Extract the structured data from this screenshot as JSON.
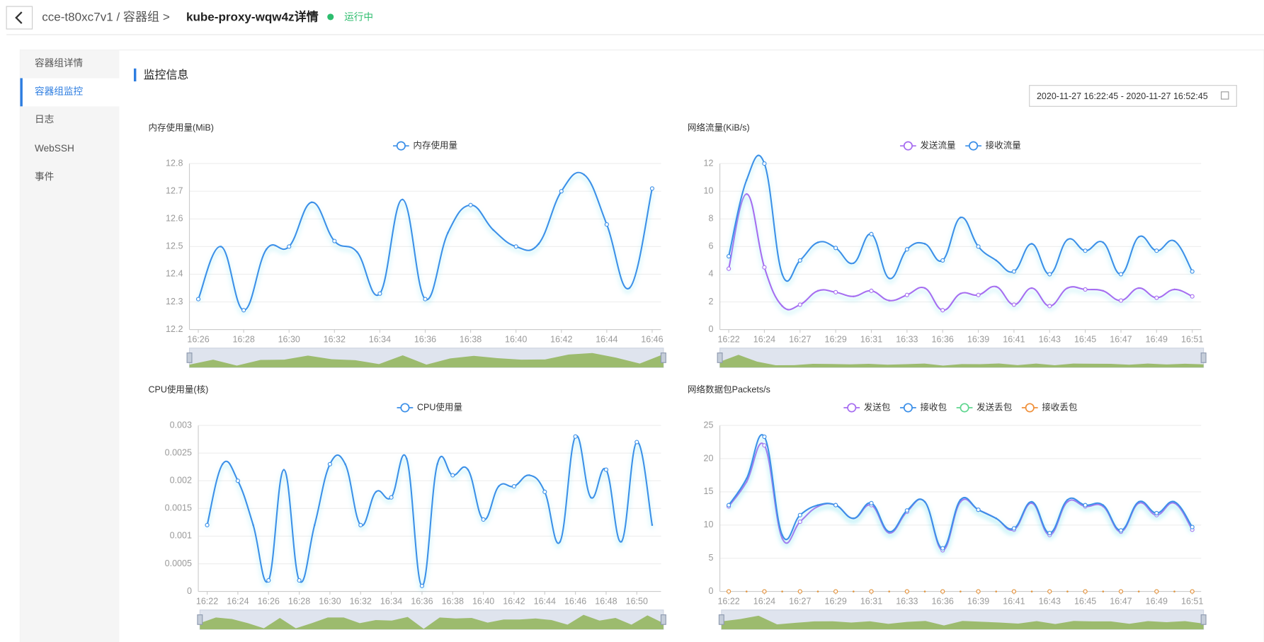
{
  "header": {
    "breadcrumb": "cce-t80xc7v1 / 容器组 >",
    "title": "kube-proxy-wqw4z详情",
    "status": "运行中"
  },
  "sidebar": [
    "容器组详情",
    "容器组监控",
    "日志",
    "WebSSH",
    "事件"
  ],
  "section_title": "监控信息",
  "date_range": "2020-11-27 16:22:45 - 2020-11-27 16:52:45",
  "chart_data": [
    {
      "type": "line",
      "smooth": true,
      "grid": true,
      "title": "内存使用量(MiB)",
      "categories": [
        "16:26",
        null,
        "16:28",
        null,
        "16:30",
        null,
        "16:32",
        null,
        "16:34",
        null,
        "16:36",
        null,
        "16:38",
        null,
        "16:40",
        null,
        "16:42",
        null,
        "16:44",
        null,
        "16:46"
      ],
      "series": [
        {
          "name": "内存使用量",
          "color": "#3b8fe8",
          "values": [
            12.31,
            12.5,
            12.27,
            12.49,
            12.5,
            12.66,
            12.52,
            12.48,
            12.33,
            12.67,
            12.31,
            12.55,
            12.65,
            12.56,
            12.5,
            12.51,
            12.7,
            12.76,
            12.58,
            12.35,
            12.71
          ]
        }
      ],
      "ylim": [
        12.2,
        12.8
      ],
      "yticks": [
        12.2,
        12.3,
        12.4,
        12.5,
        12.6,
        12.7,
        12.8
      ]
    },
    {
      "type": "line",
      "smooth": true,
      "grid": true,
      "title": "网络流量(KiB/s)",
      "categories": [
        "16:22",
        null,
        "16:24",
        null,
        "16:27",
        null,
        "16:29",
        null,
        "16:31",
        null,
        "16:33",
        null,
        "16:36",
        null,
        "16:39",
        null,
        "16:41",
        null,
        "16:43",
        null,
        "16:45",
        null,
        "16:47",
        null,
        "16:49",
        null,
        "16:51"
      ],
      "series": [
        {
          "name": "发送流量",
          "color": "#a66cf0",
          "values": [
            4.4,
            9.8,
            4.5,
            1.7,
            1.8,
            2.8,
            2.7,
            2.4,
            2.8,
            2.1,
            2.5,
            3,
            1.4,
            2.6,
            2.5,
            3.1,
            1.8,
            3,
            1.7,
            3,
            2.9,
            2.8,
            2.1,
            3,
            2.3,
            2.9,
            2.4
          ]
        },
        {
          "name": "接收流量",
          "color": "#3b8fe8",
          "values": [
            5.3,
            10.8,
            12,
            4,
            5,
            6.3,
            5.9,
            4.8,
            6.9,
            3.7,
            5.8,
            6.2,
            5,
            8.1,
            6,
            5,
            4.2,
            6.2,
            4,
            6.5,
            5.7,
            6.3,
            4,
            6.7,
            5.7,
            6.4,
            4.2
          ]
        }
      ],
      "ylim": [
        0,
        12
      ],
      "yticks": [
        0,
        2,
        4,
        6,
        8,
        10,
        12
      ]
    },
    {
      "type": "line",
      "smooth": true,
      "grid": true,
      "title": "CPU使用量(核)",
      "categories": [
        "16:22",
        null,
        "16:24",
        null,
        "16:26",
        null,
        "16:28",
        null,
        "16:30",
        null,
        "16:32",
        null,
        "16:34",
        null,
        "16:36",
        null,
        "16:38",
        null,
        "16:40",
        null,
        "16:42",
        null,
        "16:44",
        null,
        "16:46",
        null,
        "16:48",
        null,
        "16:50",
        null
      ],
      "series": [
        {
          "name": "CPU使用量",
          "color": "#3b8fe8",
          "values": [
            0.0012,
            0.0023,
            0.002,
            0.0012,
            0.0002,
            0.0022,
            0.0002,
            0.0012,
            0.0023,
            0.0023,
            0.0012,
            0.0018,
            0.0017,
            0.0024,
            0.0001,
            0.0023,
            0.0021,
            0.0022,
            0.0013,
            0.0019,
            0.0019,
            0.0021,
            0.0018,
            0.0009,
            0.0028,
            0.0017,
            0.0022,
            0.0009,
            0.0027,
            0.0012
          ]
        }
      ],
      "ylim": [
        0,
        0.003
      ],
      "yticks": [
        0,
        0.0005,
        0.001,
        0.0015,
        0.002,
        0.0025,
        0.003
      ]
    },
    {
      "type": "line",
      "smooth": true,
      "grid": true,
      "title": "网络数据包Packets/s",
      "categories": [
        "16:22",
        null,
        "16:24",
        null,
        "16:27",
        null,
        "16:29",
        null,
        "16:31",
        null,
        "16:33",
        null,
        "16:36",
        null,
        "16:39",
        null,
        "16:41",
        null,
        "16:43",
        null,
        "16:45",
        null,
        "16:47",
        null,
        "16:49",
        null,
        "16:51"
      ],
      "series": [
        {
          "name": "发送包",
          "color": "#a66cf0",
          "values": [
            12.8,
            16.5,
            22,
            8,
            10.5,
            12.8,
            13,
            11,
            13,
            8.8,
            12,
            13.5,
            6.2,
            13.5,
            12.3,
            11,
            9.3,
            13.3,
            8.5,
            13.5,
            12.8,
            12.8,
            9,
            13.3,
            11.5,
            13.3,
            9.3
          ]
        },
        {
          "name": "接收包",
          "color": "#3b8fe8",
          "values": [
            13,
            17,
            23.3,
            8.5,
            11.5,
            13,
            13,
            11,
            13.3,
            9,
            12.2,
            13.5,
            6.5,
            13.8,
            12.3,
            11,
            9.5,
            13.5,
            8.8,
            13.8,
            13,
            13,
            9.2,
            13.5,
            11.8,
            13.5,
            9.7
          ]
        },
        {
          "name": "发送丢包",
          "color": "#5fd68f",
          "values": [
            0,
            0,
            0,
            0,
            0,
            0,
            0,
            0,
            0,
            0,
            0,
            0,
            0,
            0,
            0,
            0,
            0,
            0,
            0,
            0,
            0,
            0,
            0,
            0,
            0,
            0,
            0
          ]
        },
        {
          "name": "接收丢包",
          "color": "#f0903a",
          "values": [
            0,
            0,
            0,
            0,
            0,
            0,
            0,
            0,
            0,
            0,
            0,
            0,
            0,
            0,
            0,
            0,
            0,
            0,
            0,
            0,
            0,
            0,
            0,
            0,
            0,
            0,
            0
          ]
        }
      ],
      "ylim": [
        0,
        25
      ],
      "yticks": [
        0,
        5,
        10,
        15,
        20,
        25
      ]
    }
  ]
}
